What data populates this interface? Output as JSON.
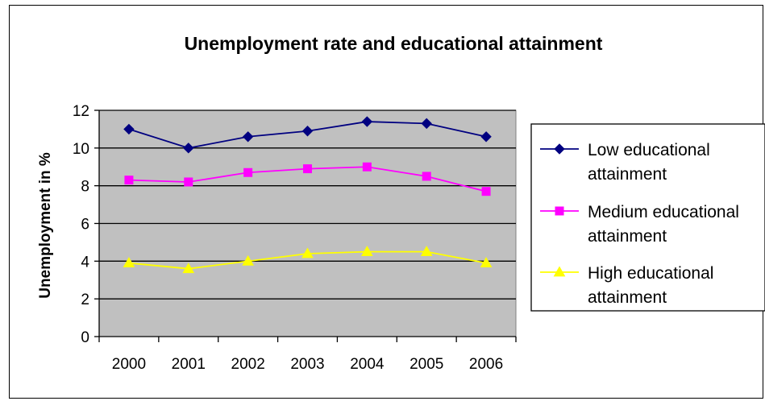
{
  "chart_data": {
    "type": "line",
    "title": "Unemployment rate and educational attainment",
    "xlabel": "",
    "ylabel": "Unemployment in %",
    "categories": [
      "2000",
      "2001",
      "2002",
      "2003",
      "2004",
      "2005",
      "2006"
    ],
    "ylim": [
      0,
      12
    ],
    "yticks": [
      0,
      2,
      4,
      6,
      8,
      10,
      12
    ],
    "grid": true,
    "legend_position": "right",
    "plot_background": "#c0c0c0",
    "series": [
      {
        "name": "Low educational attainment",
        "name_lines": [
          "Low educational",
          "attainment"
        ],
        "color": "#000080",
        "marker": "diamond",
        "values": [
          11.0,
          10.0,
          10.6,
          10.9,
          11.4,
          11.3,
          10.6
        ]
      },
      {
        "name": "Medium educational attainment",
        "name_lines": [
          "Medium educational",
          "attainment"
        ],
        "color": "#ff00ff",
        "marker": "square",
        "values": [
          8.3,
          8.2,
          8.7,
          8.9,
          9.0,
          8.5,
          7.7
        ]
      },
      {
        "name": "High educational attainment",
        "name_lines": [
          "High educational",
          "attainment"
        ],
        "color": "#ffff00",
        "marker": "triangle",
        "values": [
          3.9,
          3.6,
          4.0,
          4.4,
          4.5,
          4.5,
          3.9
        ]
      }
    ]
  }
}
